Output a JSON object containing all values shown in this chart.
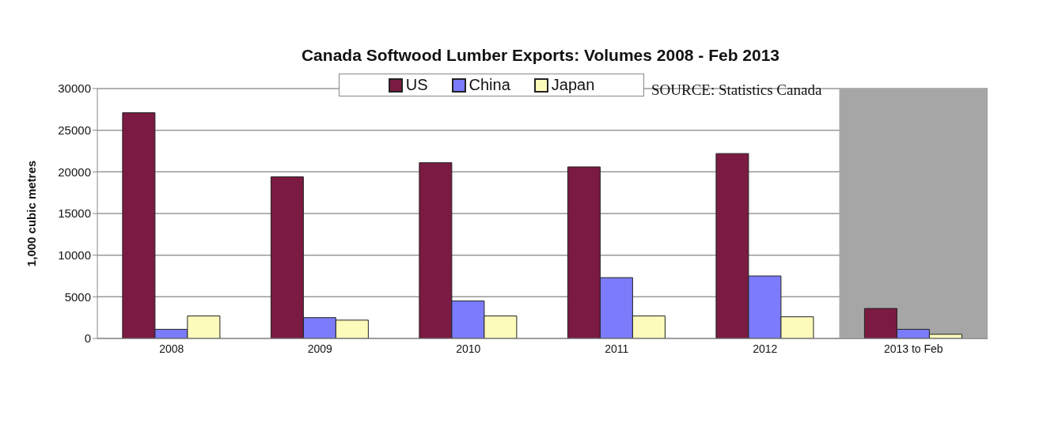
{
  "chart_data": {
    "type": "bar",
    "title": "Canada Softwood Lumber Exports: Volumes 2008 - Feb 2013",
    "ylabel": "1,000 cubic metres",
    "categories": [
      "2008",
      "2009",
      "2010",
      "2011",
      "2012",
      "2013 to Feb"
    ],
    "series": [
      {
        "name": "US",
        "color": "#7b1a42",
        "values": [
          27100,
          19400,
          21100,
          20600,
          22200,
          3600
        ]
      },
      {
        "name": "China",
        "color": "#7b7bfb",
        "values": [
          1100,
          2500,
          4500,
          7300,
          7500,
          1100
        ]
      },
      {
        "name": "Japan",
        "color": "#fdfbbb",
        "values": [
          2700,
          2200,
          2700,
          2700,
          2600,
          500
        ]
      }
    ],
    "ylim": [
      0,
      30000
    ],
    "yticks": [
      0,
      5000,
      10000,
      15000,
      20000,
      25000,
      30000
    ],
    "grid": "y",
    "legend": "top",
    "bands": [
      {
        "axis": "x",
        "from": "2013 to Feb",
        "to": "2013 to Feb",
        "color": "#a6a6a6"
      }
    ],
    "annotations": [
      "SOURCE: Statistics Canada"
    ]
  }
}
